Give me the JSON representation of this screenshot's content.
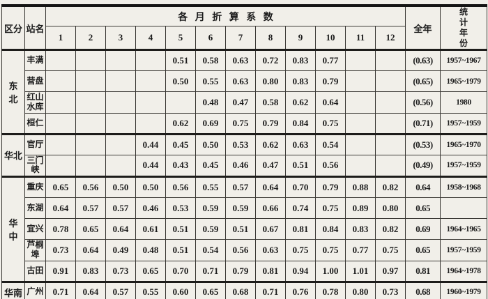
{
  "document": {
    "kind": "scanned-table",
    "colors": {
      "paper": "#f1efe9",
      "ink": "#1b1b1b",
      "rule": "#3c3a36"
    }
  },
  "table": {
    "header": {
      "region_label": "区分",
      "station_label": "站名",
      "months_title": "各月折算系数",
      "month_columns": [
        "1",
        "2",
        "3",
        "4",
        "5",
        "6",
        "7",
        "8",
        "9",
        "10",
        "11",
        "12"
      ],
      "annual_label": "全年",
      "stat_years_label": "统计年份"
    },
    "groups": [
      {
        "region": "东北",
        "rows": [
          {
            "station": "丰满",
            "months": [
              "",
              "",
              "",
              "",
              "0.51",
              "0.58",
              "0.63",
              "0.72",
              "0.83",
              "0.77",
              "",
              ""
            ],
            "annual": "(0.63)",
            "years": "1957~1967"
          },
          {
            "station": "营盘",
            "months": [
              "",
              "",
              "",
              "",
              "0.50",
              "0.55",
              "0.63",
              "0.80",
              "0.83",
              "0.79",
              "",
              ""
            ],
            "annual": "(0.65)",
            "years": "1965~1979"
          },
          {
            "station": "红山水库",
            "months": [
              "",
              "",
              "",
              "",
              "",
              "0.48",
              "0.47",
              "0.58",
              "0.62",
              "0.64",
              "",
              ""
            ],
            "annual": "(0.56)",
            "years": "1980"
          },
          {
            "station": "桓仁",
            "months": [
              "",
              "",
              "",
              "",
              "0.62",
              "0.69",
              "0.75",
              "0.79",
              "0.84",
              "0.75",
              "",
              ""
            ],
            "annual": "(0.71)",
            "years": "1957~1959"
          }
        ]
      },
      {
        "region": "华北",
        "rows": [
          {
            "station": "官厅",
            "months": [
              "",
              "",
              "",
              "0.44",
              "0.45",
              "0.50",
              "0.53",
              "0.62",
              "0.63",
              "0.54",
              "",
              ""
            ],
            "annual": "(0.53)",
            "years": "1965~1970"
          },
          {
            "station": "三门峡",
            "months": [
              "",
              "",
              "",
              "0.44",
              "0.43",
              "0.45",
              "0.46",
              "0.47",
              "0.51",
              "0.56",
              "",
              ""
            ],
            "annual": "(0.49)",
            "years": "1957~1959"
          }
        ]
      },
      {
        "region": "华中",
        "rows": [
          {
            "station": "重庆",
            "months": [
              "0.65",
              "0.56",
              "0.50",
              "0.50",
              "0.56",
              "0.55",
              "0.57",
              "0.64",
              "0.70",
              "0.79",
              "0.88",
              "0.82"
            ],
            "annual": "0.64",
            "years": "1958~1968"
          },
          {
            "station": "东湖",
            "months": [
              "0.64",
              "0.57",
              "0.57",
              "0.46",
              "0.53",
              "0.59",
              "0.59",
              "0.66",
              "0.74",
              "0.75",
              "0.89",
              "0.80"
            ],
            "annual": "0.65",
            "years": ""
          },
          {
            "station": "宜兴",
            "months": [
              "0.78",
              "0.65",
              "0.64",
              "0.61",
              "0.51",
              "0.59",
              "0.51",
              "0.67",
              "0.81",
              "0.84",
              "0.83",
              "0.82"
            ],
            "annual": "0.69",
            "years": "1964~1965"
          },
          {
            "station": "芦桐埠",
            "months": [
              "0.73",
              "0.64",
              "0.49",
              "0.48",
              "0.51",
              "0.54",
              "0.56",
              "0.63",
              "0.75",
              "0.75",
              "0.77",
              "0.75"
            ],
            "annual": "0.65",
            "years": "1957~1959"
          },
          {
            "station": "古田",
            "months": [
              "0.91",
              "0.83",
              "0.73",
              "0.65",
              "0.70",
              "0.71",
              "0.79",
              "0.81",
              "0.94",
              "1.00",
              "1.01",
              "0.97"
            ],
            "annual": "0.81",
            "years": "1964~1978"
          }
        ]
      },
      {
        "region": "华南",
        "rows": [
          {
            "station": "广州",
            "months": [
              "0.71",
              "0.64",
              "0.57",
              "0.55",
              "0.60",
              "0.65",
              "0.68",
              "0.71",
              "0.76",
              "0.78",
              "0.80",
              "0.73"
            ],
            "annual": "0.68",
            "years": "1960~1979"
          }
        ]
      }
    ]
  }
}
